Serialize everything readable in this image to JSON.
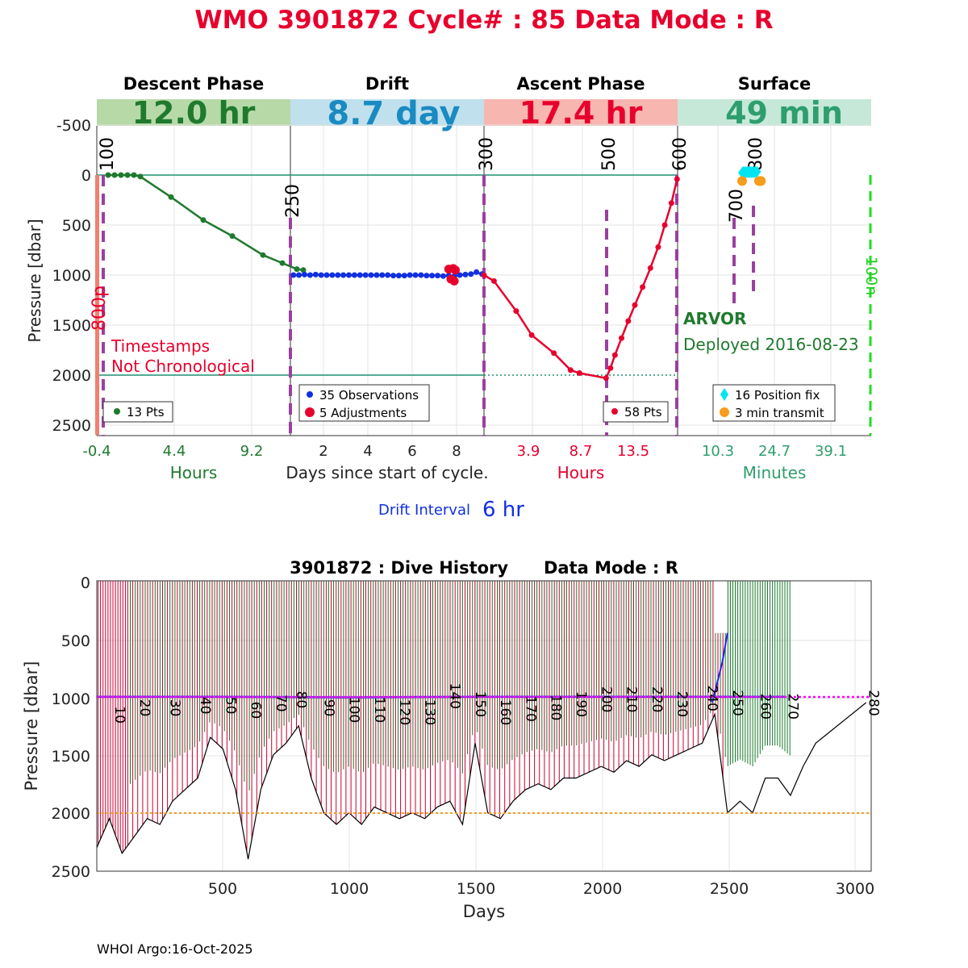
{
  "title": "WMO 3901872   Cycle# : 85   Data Mode : R",
  "colors": {
    "title": "#e8002d",
    "descent": "#1f7a2e",
    "drift": "#1a8ac2",
    "ascent": "#e8002d",
    "surface": "#2e9e6e",
    "descent_bg": "#b7d9a8",
    "drift_bg": "#bfe0ec",
    "ascent_bg": "#f7b6b0",
    "surface_bg": "#c6e8d8",
    "phase_line": "#9b3fa0",
    "pos_fix": "#00e5f0",
    "transmit": "#f89c1c",
    "ref_line": "#1f9070"
  },
  "phases": {
    "descent": {
      "name": "Descent Phase",
      "duration": "12.0 hr",
      "xlabel": "Hours",
      "ticks": [
        "-0.4",
        "4.4",
        "9.2"
      ],
      "legend": "13 Pts"
    },
    "drift": {
      "name": "Drift",
      "duration": "8.7 day",
      "xlabel": "Days since start of cycle.",
      "ticks": [
        "2",
        "4",
        "6",
        "8"
      ],
      "legend_obs": "35 Observations",
      "legend_adj": "5 Adjustments"
    },
    "ascent": {
      "name": "Ascent Phase",
      "duration": "17.4 hr",
      "xlabel": "Hours",
      "ticks": [
        "3.9",
        "8.7",
        "13.5"
      ],
      "legend": "58 Pts"
    },
    "surface": {
      "name": "Surface",
      "duration": "49 min",
      "xlabel": "Minutes",
      "ticks": [
        "10.3",
        "24.7",
        "39.1"
      ],
      "legend_fix": "16 Position fix",
      "legend_tx": "3 min transmit"
    }
  },
  "top_plot": {
    "ylabel": "Pressure [dbar]",
    "yticks": [
      "-500",
      "0",
      "500",
      "1000",
      "1500",
      "2000",
      "2500"
    ],
    "markers": [
      "100",
      "250",
      "300",
      "500",
      "600",
      "700",
      "800",
      "800p",
      "100n"
    ],
    "warning_line1": "Timestamps",
    "warning_line2": "Not Chronological",
    "float_type": "ARVOR",
    "deployed": "Deployed 2016-08-23",
    "drift_interval_label": "Drift Interval",
    "drift_interval_value": "6 hr"
  },
  "bottom_plot": {
    "title": "3901872 : Dive History      Data Mode : R",
    "ylabel": "Pressure [dbar]",
    "xlabel": "Days",
    "yticks": [
      "0",
      "500",
      "1000",
      "1500",
      "2000",
      "2500"
    ],
    "xticks": [
      "500",
      "1000",
      "1500",
      "2000",
      "2500",
      "3000"
    ],
    "cycle_labels": [
      "10",
      "20",
      "30",
      "40",
      "50",
      "60",
      "70",
      "80",
      "90",
      "100",
      "110",
      "120",
      "130",
      "140",
      "150",
      "160",
      "170",
      "180",
      "190",
      "200",
      "210",
      "220",
      "230",
      "240",
      "250",
      "260",
      "270",
      "280"
    ]
  },
  "footer": "WHOI Argo:16-Oct-2025",
  "chart_data": [
    {
      "type": "line",
      "title": "Descent Phase",
      "xlabel": "Hours",
      "ylabel": "Pressure [dbar]",
      "xlim": [
        -0.4,
        12.0
      ],
      "ylim": [
        2600,
        -750
      ],
      "x": [
        0.3,
        0.7,
        1.1,
        1.5,
        1.9,
        2.3,
        4.2,
        6.2,
        8.0,
        9.9,
        11.1,
        12.0,
        12.4
      ],
      "y": [
        0,
        0,
        0,
        0,
        0,
        15,
        220,
        450,
        610,
        800,
        880,
        940,
        950
      ]
    },
    {
      "type": "line",
      "title": "Drift",
      "xlabel": "Days since start of cycle.",
      "ylabel": "Pressure [dbar]",
      "xlim": [
        0.5,
        9.2
      ],
      "ylim": [
        2600,
        -750
      ],
      "series": [
        {
          "name": "35 Observations",
          "x": [
            0.6,
            0.85,
            1.1,
            1.35,
            1.6,
            1.85,
            2.1,
            2.35,
            2.6,
            2.85,
            3.1,
            3.35,
            3.6,
            3.85,
            4.1,
            4.35,
            4.6,
            4.85,
            5.1,
            5.35,
            5.6,
            5.85,
            6.1,
            6.35,
            6.6,
            6.85,
            7.1,
            7.35,
            7.6,
            7.85,
            8.1,
            8.35,
            8.6,
            8.85,
            9.1
          ],
          "y": [
            1000,
            1000,
            995,
            1000,
            995,
            1000,
            1000,
            1000,
            1000,
            1000,
            1000,
            1000,
            1000,
            1000,
            1000,
            1000,
            1000,
            1000,
            1005,
            1005,
            1005,
            1000,
            1000,
            1000,
            1005,
            1005,
            1005,
            1010,
            1005,
            1010,
            1000,
            995,
            990,
            970,
            990
          ]
        },
        {
          "name": "5 Adjustments",
          "x": [
            7.6,
            7.8,
            7.9,
            7.7,
            7.85
          ],
          "y": [
            940,
            935,
            950,
            1040,
            1060
          ]
        }
      ]
    },
    {
      "type": "line",
      "title": "Ascent Phase",
      "xlabel": "Hours",
      "ylabel": "Pressure [dbar]",
      "xlim": [
        0,
        17.4
      ],
      "ylim": [
        2600,
        -750
      ],
      "x": [
        0.0,
        0.9,
        2.9,
        4.3,
        6.3,
        7.8,
        8.6,
        11.0,
        11.4,
        11.8,
        12.4,
        13.0,
        13.6,
        14.3,
        15.0,
        15.7,
        16.3,
        16.9,
        17.4
      ],
      "y": [
        1000,
        1060,
        1360,
        1600,
        1780,
        1950,
        1980,
        2030,
        1930,
        1800,
        1630,
        1460,
        1300,
        1120,
        930,
        720,
        500,
        280,
        40
      ]
    },
    {
      "type": "scatter",
      "title": "Surface",
      "xlabel": "Minutes",
      "ylabel": "Pressure [dbar]",
      "series": [
        {
          "name": "16 Position fix",
          "x": [
            16.5,
            17.0,
            17.5,
            18.0,
            18.5,
            19.0,
            19.5,
            20.0,
            16.8,
            17.3,
            17.8,
            18.3,
            18.8,
            19.3,
            19.8,
            20.3
          ],
          "y": [
            -40,
            -40,
            -40,
            -40,
            -40,
            -40,
            -40,
            -40,
            -50,
            -50,
            -50,
            -50,
            -50,
            -50,
            -50,
            -50
          ]
        },
        {
          "name": "3 min transmit",
          "x": [
            16.5,
            20.8,
            21.3
          ],
          "y": [
            60,
            60,
            60
          ]
        }
      ]
    },
    {
      "type": "line",
      "title": "3901872 : Dive History      Data Mode : R",
      "xlabel": "Days",
      "ylabel": "Pressure [dbar]",
      "xlim": [
        0,
        3070
      ],
      "ylim": [
        2500,
        0
      ],
      "series": [
        {
          "name": "drift pressure",
          "x": [
            0,
            500,
            1000,
            1500,
            2000,
            2500,
            2730
          ],
          "y": [
            1000,
            1000,
            1005,
            1000,
            1000,
            1000,
            1000
          ]
        },
        {
          "name": "profile max pressure",
          "x": [
            0,
            50,
            100,
            150,
            200,
            250,
            300,
            350,
            400,
            450,
            500,
            550,
            600,
            650,
            700,
            750,
            800,
            850,
            900,
            950,
            1000,
            1050,
            1100,
            1150,
            1200,
            1250,
            1300,
            1350,
            1400,
            1450,
            1500,
            1550,
            1600,
            1650,
            1700,
            1750,
            1800,
            1850,
            1900,
            1950,
            2000,
            2050,
            2100,
            2150,
            2200,
            2250,
            2300,
            2350,
            2400,
            2450,
            2500,
            2550,
            2600,
            2650,
            2700,
            2750,
            2800,
            2850,
            3050
          ],
          "y": [
            2300,
            2050,
            2350,
            2200,
            2050,
            2100,
            1900,
            1800,
            1700,
            1350,
            1450,
            1800,
            2400,
            1800,
            1500,
            1400,
            1250,
            1700,
            2000,
            2100,
            2000,
            2100,
            1950,
            2000,
            2050,
            2000,
            2050,
            1950,
            1900,
            2100,
            1400,
            2000,
            2050,
            1900,
            1800,
            1750,
            1800,
            1700,
            1700,
            1650,
            1600,
            1650,
            1550,
            1600,
            1500,
            1550,
            1500,
            1450,
            1400,
            1150,
            2000,
            1900,
            2000,
            1700,
            1700,
            1850,
            1600,
            1400,
            1050
          ]
        }
      ],
      "reference_lines": {
        "drift_target": 1000,
        "profile_target": 2000
      }
    }
  ]
}
